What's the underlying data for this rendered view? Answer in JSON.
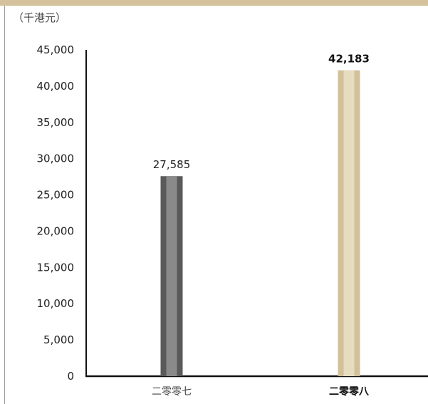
{
  "unit_label": "（千港元）",
  "colors": {
    "top_band": "#d3c29b",
    "bar_2007_outer": "#5a5a5a",
    "bar_2007_inner": "#8a8a8a",
    "bar_2008_outer": "#d2c098",
    "bar_2008_inner": "#e8dcc0",
    "axis": "#111111"
  },
  "chart_data": {
    "type": "bar",
    "categories": [
      "二零零七",
      "二零零八"
    ],
    "values": [
      27585,
      42183
    ],
    "value_labels": [
      "27,585",
      "42,183"
    ],
    "highlight_index": 1,
    "ylim": [
      0,
      45000
    ],
    "y_ticks": [
      0,
      5000,
      10000,
      15000,
      20000,
      25000,
      30000,
      35000,
      40000,
      45000
    ],
    "y_tick_labels": [
      "0",
      "5,000",
      "10,000",
      "15,000",
      "20,000",
      "25,000",
      "30,000",
      "35,000",
      "40,000",
      "45,000"
    ],
    "grid": false,
    "title": "",
    "xlabel": "",
    "ylabel": ""
  }
}
